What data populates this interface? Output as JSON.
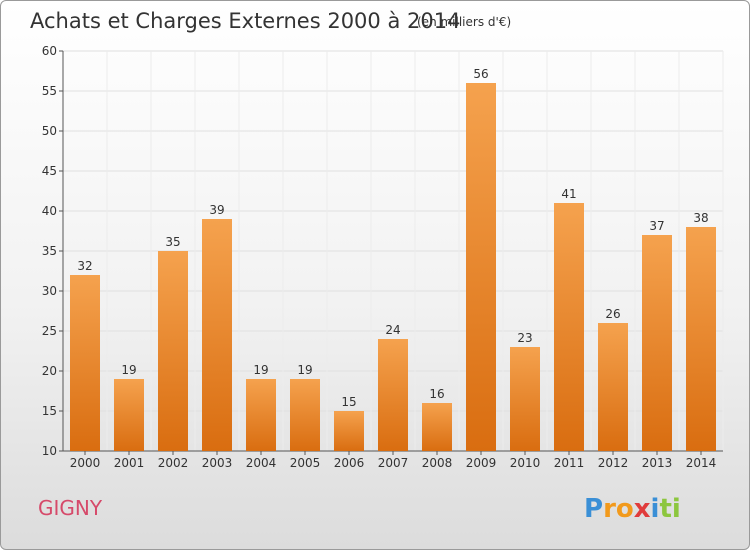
{
  "chart_data": {
    "type": "bar",
    "title": "Achats et Charges Externes 2000 à 2014",
    "subtitle": "(en milliers d'€)",
    "categories": [
      "2000",
      "2001",
      "2002",
      "2003",
      "2004",
      "2005",
      "2006",
      "2007",
      "2008",
      "2009",
      "2010",
      "2011",
      "2012",
      "2013",
      "2014"
    ],
    "values": [
      32,
      19,
      35,
      39,
      19,
      19,
      15,
      24,
      16,
      56,
      23,
      41,
      26,
      37,
      38
    ],
    "ylim": [
      10,
      60
    ],
    "yticks": [
      10,
      15,
      20,
      25,
      30,
      35,
      40,
      45,
      50,
      55,
      60
    ],
    "grid": true,
    "bar_color_top": "#f5a24e",
    "bar_color_bottom": "#d96d10"
  },
  "commune": "GIGNY",
  "logo": {
    "letters": [
      "P",
      "r",
      "o",
      "x",
      "i",
      "t",
      "i"
    ],
    "colors": [
      "#3a8fd6",
      "#f29a1c",
      "#f29a1c",
      "#e03c3c",
      "#3a8fd6",
      "#8cc63e",
      "#8cc63e"
    ]
  }
}
